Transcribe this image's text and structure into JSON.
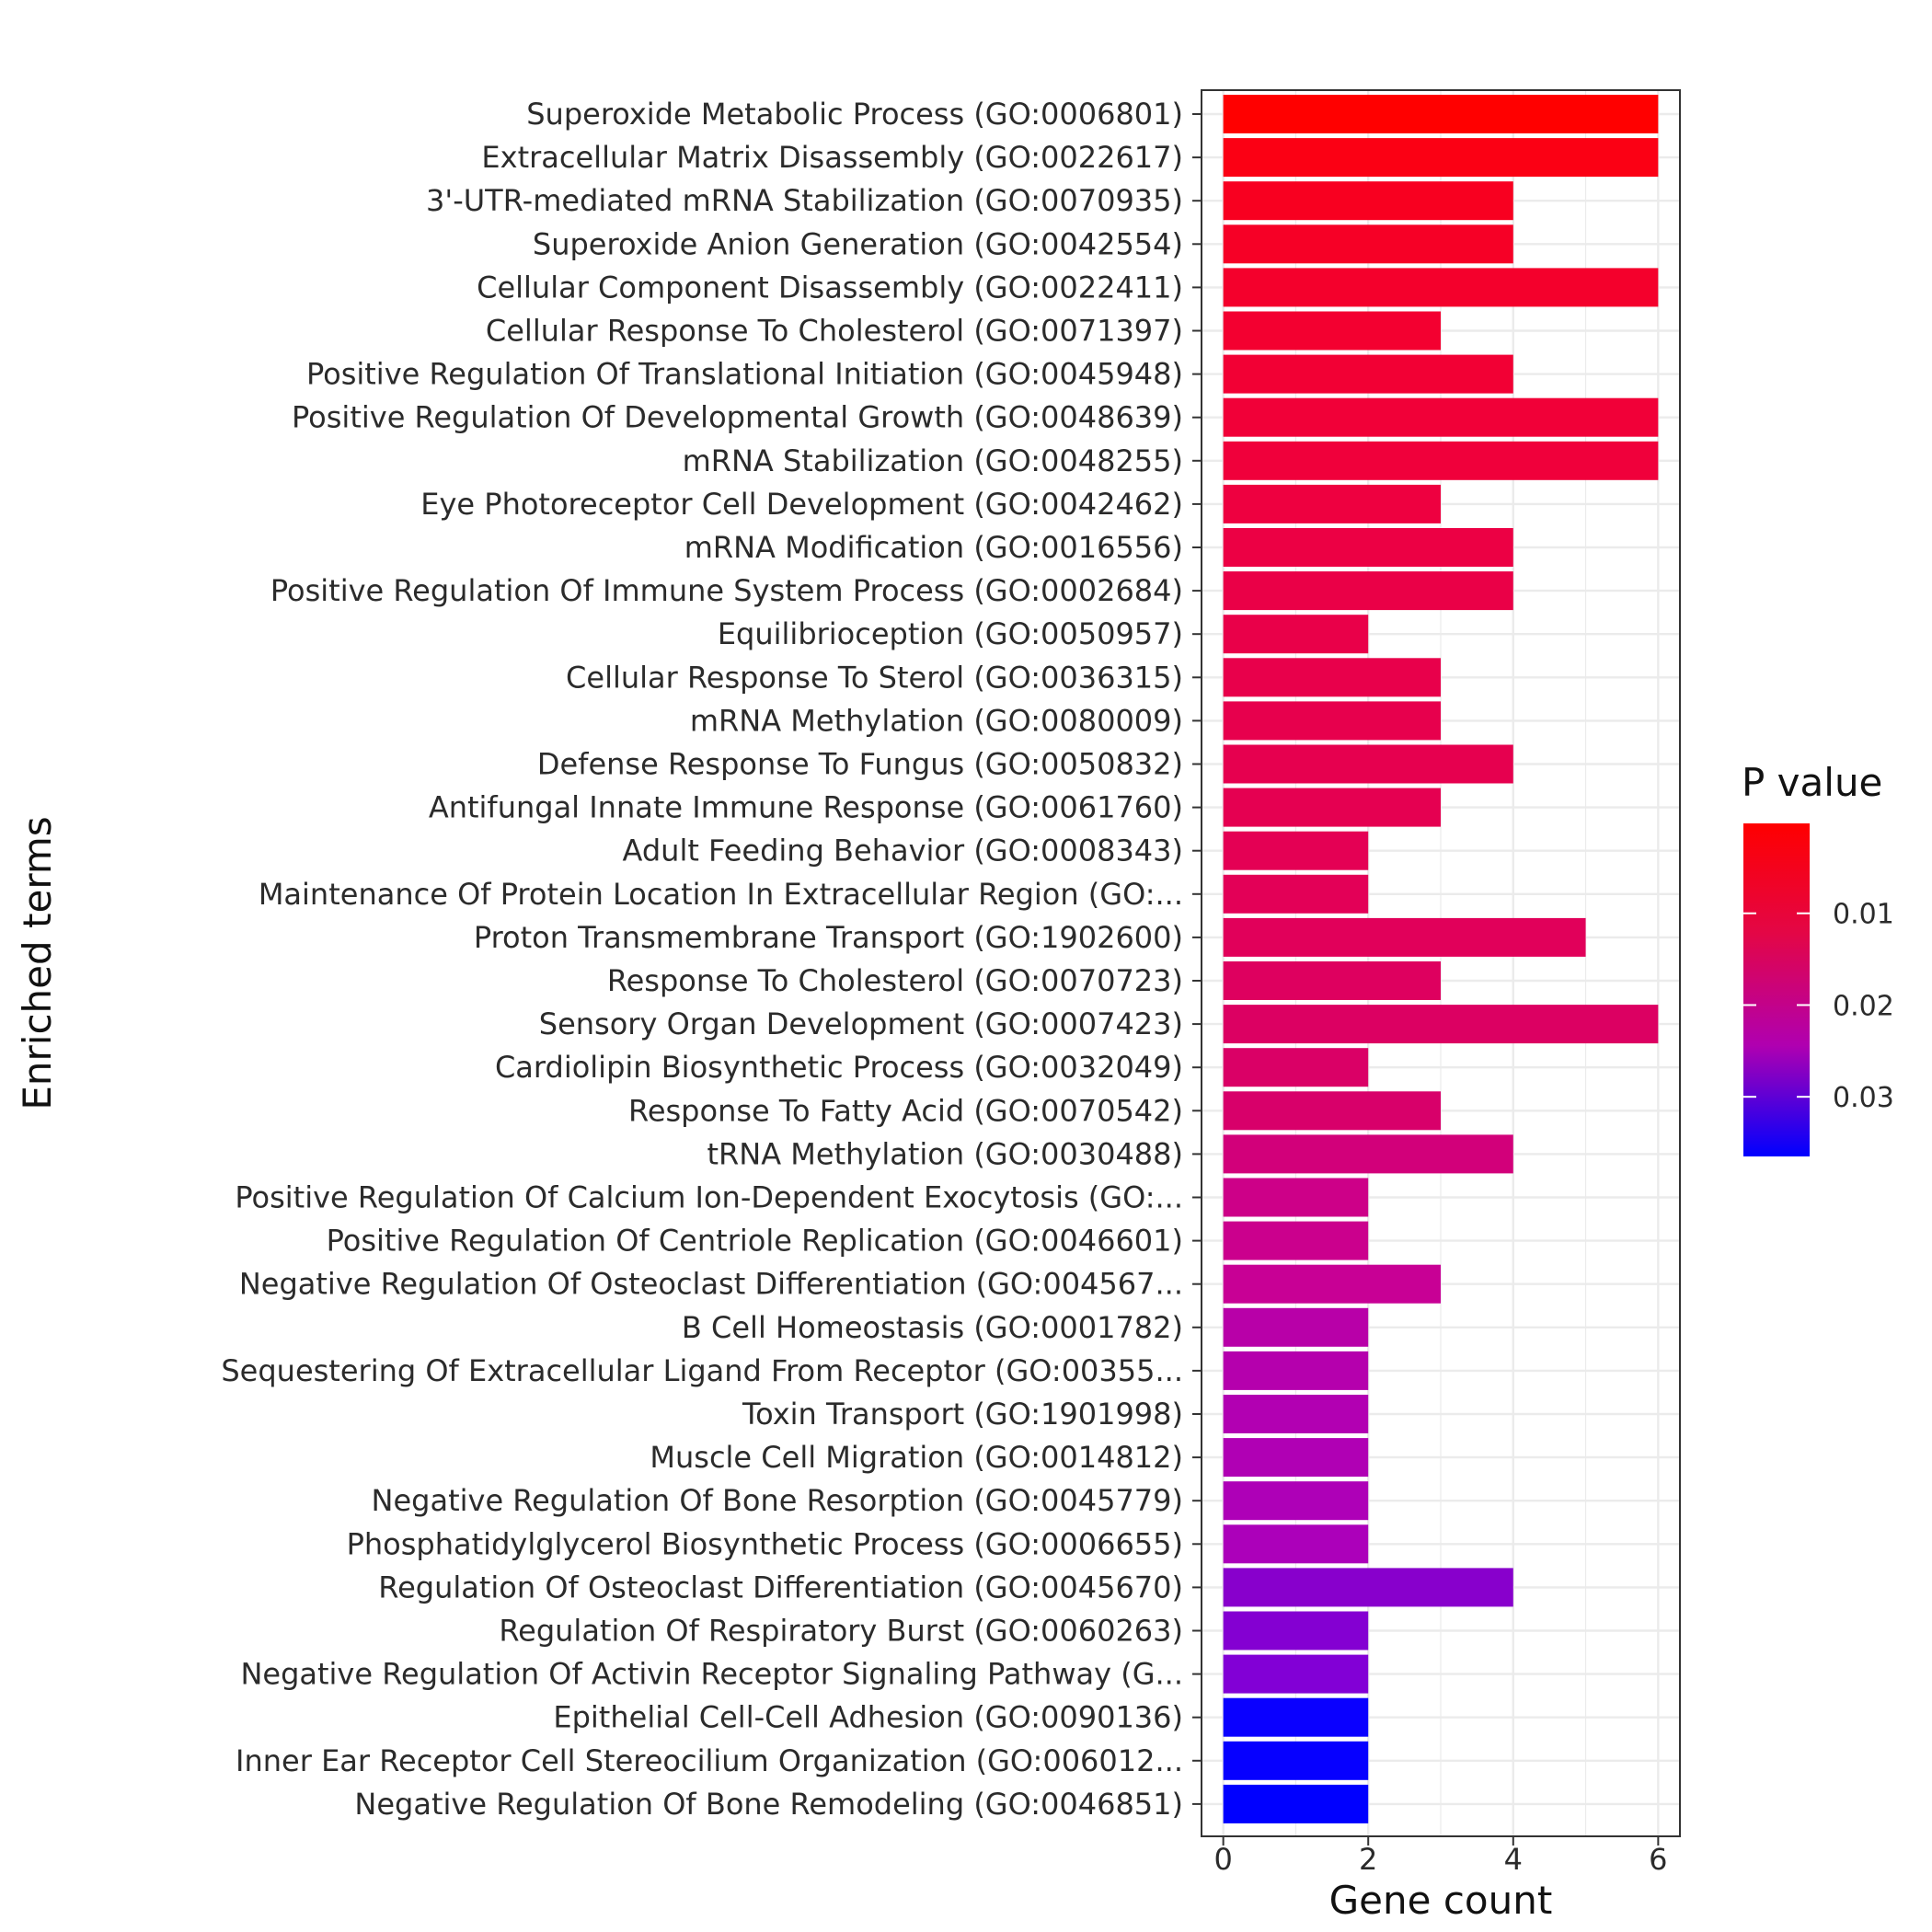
{
  "chart_data": {
    "type": "bar",
    "orientation": "horizontal",
    "xlabel": "Gene count",
    "ylabel": "Enriched terms",
    "xlim": [
      -0.3,
      6.3
    ],
    "xticks": [
      "0",
      "2",
      "4",
      "6"
    ],
    "grid": true,
    "legend": {
      "title": "P value",
      "placement": "right",
      "labels": [
        "0.01",
        "0.02",
        "0.03"
      ],
      "gradient_colors": [
        "#ff0000",
        "#e30647",
        "#b000b0",
        "#0000ff"
      ]
    },
    "categories": [
      "Superoxide Metabolic Process (GO:0006801)",
      "Extracellular Matrix Disassembly (GO:0022617)",
      "3'-UTR-mediated mRNA Stabilization (GO:0070935)",
      "Superoxide Anion Generation (GO:0042554)",
      "Cellular Component Disassembly (GO:0022411)",
      "Cellular Response To Cholesterol (GO:0071397)",
      "Positive Regulation Of Translational Initiation (GO:0045948)",
      "Positive Regulation Of Developmental Growth (GO:0048639)",
      "mRNA Stabilization (GO:0048255)",
      "Eye Photoreceptor Cell Development (GO:0042462)",
      "mRNA Modification (GO:0016556)",
      "Positive Regulation Of Immune System Process (GO:0002684)",
      "Equilibrioception (GO:0050957)",
      "Cellular Response To Sterol (GO:0036315)",
      "mRNA Methylation (GO:0080009)",
      "Defense Response To Fungus (GO:0050832)",
      "Antifungal Innate Immune Response (GO:0061760)",
      "Adult Feeding Behavior (GO:0008343)",
      "Maintenance Of Protein Location In Extracellular Region (GO:...",
      "Proton Transmembrane Transport (GO:1902600)",
      "Response To Cholesterol (GO:0070723)",
      "Sensory Organ Development (GO:0007423)",
      "Cardiolipin Biosynthetic Process (GO:0032049)",
      "Response To Fatty Acid (GO:0070542)",
      "tRNA Methylation (GO:0030488)",
      "Positive Regulation Of Calcium Ion-Dependent Exocytosis (GO:...",
      "Positive Regulation Of Centriole Replication (GO:0046601)",
      "Negative Regulation Of Osteoclast Differentiation (GO:004567...",
      "B Cell Homeostasis (GO:0001782)",
      "Sequestering Of Extracellular Ligand From Receptor (GO:00355...",
      "Toxin Transport (GO:1901998)",
      "Muscle Cell Migration (GO:0014812)",
      "Negative Regulation Of Bone Resorption (GO:0045779)",
      "Phosphatidylglycerol Biosynthetic Process (GO:0006655)",
      "Regulation Of Osteoclast Differentiation (GO:0045670)",
      "Regulation Of Respiratory Burst (GO:0060263)",
      "Negative Regulation Of Activin Receptor Signaling Pathway (G...",
      "Epithelial Cell-Cell Adhesion (GO:0090136)",
      "Inner Ear Receptor Cell Stereocilium Organization (GO:006012...",
      "Negative Regulation Of Bone Remodeling (GO:0046851)"
    ],
    "values": [
      6,
      6,
      4,
      4,
      6,
      3,
      4,
      6,
      6,
      3,
      4,
      4,
      2,
      3,
      3,
      4,
      3,
      2,
      2,
      5,
      3,
      6,
      2,
      3,
      4,
      2,
      2,
      3,
      2,
      2,
      2,
      2,
      2,
      2,
      4,
      2,
      2,
      2,
      2,
      2
    ],
    "colors": [
      "#ff0000",
      "#fb0014",
      "#f80020",
      "#f60026",
      "#f4002c",
      "#f30030",
      "#f20034",
      "#f10038",
      "#f0003b",
      "#ee0040",
      "#ec0044",
      "#ea0047",
      "#e90049",
      "#e8004b",
      "#e7004d",
      "#e6004f",
      "#e50051",
      "#e40054",
      "#e30057",
      "#e1005a",
      "#de005f",
      "#dc0062",
      "#da0066",
      "#d8006a",
      "#d2007a",
      "#cd0088",
      "#cb008d",
      "#c80095",
      "#b800a8",
      "#b500ad",
      "#b200b2",
      "#b000b4",
      "#ae00b7",
      "#ac00ba",
      "#8800cc",
      "#8400d2",
      "#8200d6",
      "#0a00ff",
      "#0600ff",
      "#0000ff"
    ]
  }
}
